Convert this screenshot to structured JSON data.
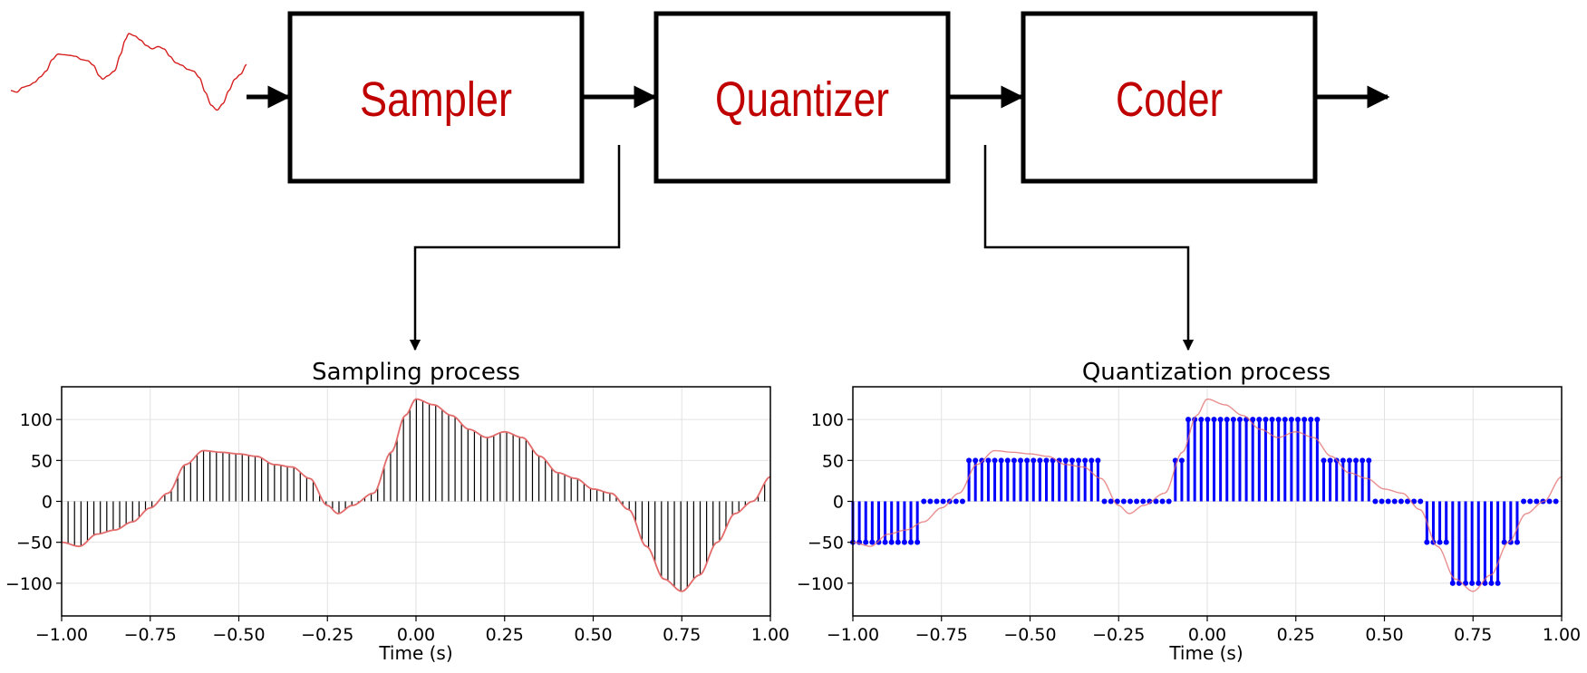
{
  "blocks": {
    "sampler": "Sampler",
    "quantizer": "Quantizer",
    "coder": "Coder"
  },
  "colors": {
    "block_text": "#c00000",
    "signal": "#e36a6a",
    "sample_stems": "#000000",
    "quantized_stems": "#0000ff"
  },
  "chart_data": [
    {
      "type": "stem",
      "title": "Sampling process",
      "xlabel": "Time (s)",
      "ylabel": "",
      "xlim": [
        -1.0,
        1.0
      ],
      "ylim": [
        -140,
        140
      ],
      "xticks": [
        "−1.00",
        "−0.75",
        "−0.50",
        "−0.25",
        "0.00",
        "0.25",
        "0.50",
        "0.75",
        "1.00"
      ],
      "yticks": [
        "100",
        "50",
        "0",
        "−50",
        "−100"
      ],
      "grid": true,
      "signal_keypoints": [
        [
          -1.0,
          -50
        ],
        [
          -0.95,
          -55
        ],
        [
          -0.9,
          -40
        ],
        [
          -0.85,
          -35
        ],
        [
          -0.8,
          -25
        ],
        [
          -0.75,
          -8
        ],
        [
          -0.7,
          10
        ],
        [
          -0.65,
          45
        ],
        [
          -0.6,
          62
        ],
        [
          -0.55,
          60
        ],
        [
          -0.5,
          58
        ],
        [
          -0.45,
          55
        ],
        [
          -0.4,
          45
        ],
        [
          -0.35,
          42
        ],
        [
          -0.3,
          28
        ],
        [
          -0.25,
          -5
        ],
        [
          -0.22,
          -15
        ],
        [
          -0.18,
          -5
        ],
        [
          -0.12,
          10
        ],
        [
          -0.07,
          60
        ],
        [
          -0.03,
          105
        ],
        [
          0.0,
          125
        ],
        [
          0.05,
          118
        ],
        [
          0.1,
          105
        ],
        [
          0.15,
          88
        ],
        [
          0.2,
          78
        ],
        [
          0.25,
          85
        ],
        [
          0.3,
          78
        ],
        [
          0.35,
          55
        ],
        [
          0.4,
          35
        ],
        [
          0.45,
          28
        ],
        [
          0.5,
          15
        ],
        [
          0.55,
          10
        ],
        [
          0.6,
          -10
        ],
        [
          0.65,
          -55
        ],
        [
          0.7,
          -95
        ],
        [
          0.75,
          -110
        ],
        [
          0.8,
          -90
        ],
        [
          0.85,
          -50
        ],
        [
          0.9,
          -15
        ],
        [
          0.95,
          0
        ],
        [
          1.0,
          30
        ]
      ],
      "sample_spacing": 0.0182
    },
    {
      "type": "stem",
      "title": "Quantization process",
      "xlabel": "Time (s)",
      "ylabel": "",
      "xlim": [
        -1.0,
        1.0
      ],
      "ylim": [
        -140,
        140
      ],
      "xticks": [
        "−1.00",
        "−0.75",
        "−0.50",
        "−0.25",
        "0.00",
        "0.25",
        "0.50",
        "0.75",
        "1.00"
      ],
      "yticks": [
        "100",
        "50",
        "0",
        "−50",
        "−100"
      ],
      "grid": true,
      "quantization_step": 50,
      "sample_spacing": 0.0182
    }
  ]
}
